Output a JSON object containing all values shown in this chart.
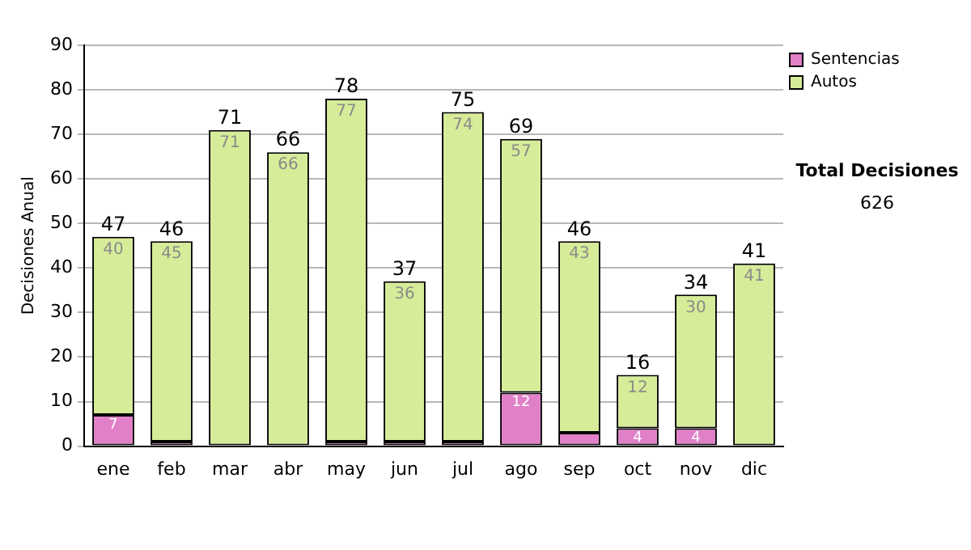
{
  "chart_data": {
    "type": "bar",
    "stacked": true,
    "ylabel": "Decisiones Anual",
    "categories": [
      "ene",
      "feb",
      "mar",
      "abr",
      "may",
      "jun",
      "jul",
      "ago",
      "sep",
      "oct",
      "nov",
      "dic"
    ],
    "series": [
      {
        "name": "Sentencias",
        "color": "#e080c8",
        "values": [
          7,
          1,
          0,
          0,
          1,
          1,
          1,
          12,
          3,
          4,
          4,
          0
        ],
        "value_labels": [
          "7",
          null,
          null,
          null,
          null,
          null,
          null,
          "12",
          null,
          "4",
          "4",
          null
        ]
      },
      {
        "name": "Autos",
        "color": "#d6ec98",
        "values": [
          40,
          45,
          71,
          66,
          77,
          36,
          74,
          57,
          43,
          12,
          30,
          41
        ],
        "value_labels": [
          "40",
          "45",
          "71",
          "66",
          "77",
          "36",
          "74",
          "57",
          "43",
          "12",
          "30",
          "41"
        ]
      }
    ],
    "totals": [
      "47",
      "46",
      "71",
      "66",
      "78",
      "37",
      "75",
      "69",
      "46",
      "16",
      "34",
      "41"
    ],
    "ylim": [
      0,
      90
    ],
    "yticks": [
      0,
      10,
      20,
      30,
      40,
      50,
      60,
      70,
      80,
      90
    ],
    "grid": "y",
    "legend": "right",
    "annotations": [
      "Total Decisiones",
      "626"
    ]
  }
}
